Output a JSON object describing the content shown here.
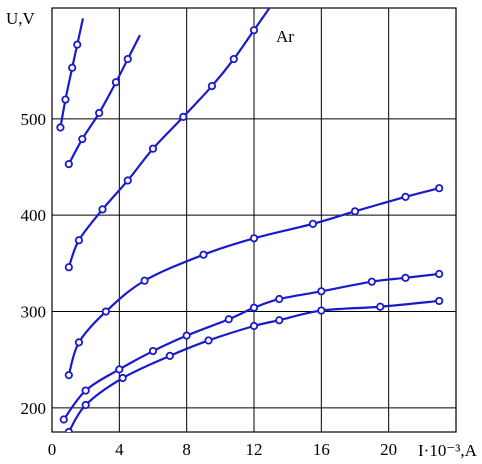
{
  "chart_data": {
    "type": "line",
    "ylabel": "U,V",
    "xlabel": "I·10⁻³,A",
    "annotation": "Ar",
    "xlim": [
      0,
      24
    ],
    "ylim": [
      175,
      615
    ],
    "x_ticks": [
      0,
      4,
      8,
      12,
      16,
      20
    ],
    "x_tick_labels": [
      "0",
      "4",
      "8",
      "12",
      "16",
      "20"
    ],
    "y_ticks": [
      200,
      300,
      400,
      500
    ],
    "y_tick_labels": [
      "200",
      "300",
      "400",
      "500"
    ],
    "grid": true,
    "color": "#1a1acd",
    "series": [
      {
        "x": [
          0.5,
          0.8,
          1.2,
          1.5
        ],
        "y": [
          491,
          520,
          553,
          577
        ]
      },
      {
        "x": [
          1.0,
          1.8,
          2.8,
          3.8,
          4.5
        ],
        "y": [
          453,
          479,
          506,
          538,
          562
        ]
      },
      {
        "x": [
          1.0,
          1.6,
          3.0,
          4.5,
          6.0,
          7.8,
          9.5,
          10.8,
          12.0
        ],
        "y": [
          346,
          374,
          406,
          436,
          469,
          502,
          534,
          562,
          592
        ]
      },
      {
        "x": [
          1.0,
          1.6,
          3.2,
          5.5,
          9.0,
          12.0,
          15.5,
          18.0,
          21.0,
          23.0
        ],
        "y": [
          234,
          268,
          300,
          332,
          359,
          376,
          391,
          404,
          419,
          428
        ]
      },
      {
        "x": [
          0.7,
          2.0,
          4.0,
          6.0,
          8.0,
          10.5,
          12.0,
          13.5,
          16.0,
          19.0,
          21.0,
          23.0
        ],
        "y": [
          188,
          218,
          240,
          259,
          275,
          292,
          304,
          313,
          321,
          331,
          335,
          339
        ]
      },
      {
        "x": [
          1.0,
          2.0,
          4.2,
          7.0,
          9.3,
          12.0,
          13.5,
          16.0,
          19.5,
          23.0
        ],
        "y": [
          175,
          203,
          231,
          254,
          270,
          285,
          291,
          301,
          305,
          311
        ]
      }
    ]
  }
}
